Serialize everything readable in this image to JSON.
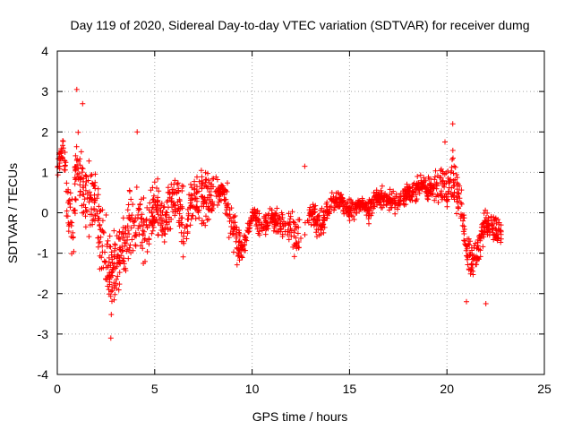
{
  "chart_data": {
    "type": "scatter",
    "title": "Day 119 of 2020, Sidereal Day-to-day VTEC variation (SDTVAR) for receiver dumg",
    "xlabel": "GPS time / hours",
    "ylabel": "SDTVAR / TECUs",
    "xlim": [
      0,
      25
    ],
    "ylim": [
      -4,
      4
    ],
    "xticks": [
      0,
      5,
      10,
      15,
      20,
      25
    ],
    "yticks": [
      -4,
      -3,
      -2,
      -1,
      0,
      1,
      2,
      3,
      4
    ],
    "grid": true,
    "marker": "+",
    "color": "#ff0000",
    "series": [
      {
        "name": "SDTVAR",
        "x_range_hours": [
          0,
          22.8
        ],
        "profile": [
          {
            "x": 0.0,
            "center": 1.1,
            "spread": 0.3
          },
          {
            "x": 0.3,
            "center": 1.6,
            "spread": 0.5
          },
          {
            "x": 0.5,
            "center": 0.4,
            "spread": 1.2
          },
          {
            "x": 0.8,
            "center": -0.8,
            "spread": 1.0
          },
          {
            "x": 1.0,
            "center": 1.5,
            "spread": 1.4
          },
          {
            "x": 1.3,
            "center": 0.5,
            "spread": 1.5
          },
          {
            "x": 1.8,
            "center": 0.4,
            "spread": 1.2
          },
          {
            "x": 2.3,
            "center": -0.6,
            "spread": 1.5
          },
          {
            "x": 2.8,
            "center": -1.6,
            "spread": 1.4
          },
          {
            "x": 3.3,
            "center": -0.9,
            "spread": 1.2
          },
          {
            "x": 4.0,
            "center": 0.0,
            "spread": 1.3
          },
          {
            "x": 4.5,
            "center": -0.5,
            "spread": 1.2
          },
          {
            "x": 5.0,
            "center": 0.3,
            "spread": 0.9
          },
          {
            "x": 5.5,
            "center": -0.2,
            "spread": 1.0
          },
          {
            "x": 6.0,
            "center": 0.5,
            "spread": 0.9
          },
          {
            "x": 6.5,
            "center": -0.3,
            "spread": 1.1
          },
          {
            "x": 7.0,
            "center": 0.4,
            "spread": 0.8
          },
          {
            "x": 7.5,
            "center": 0.3,
            "spread": 1.0
          },
          {
            "x": 8.0,
            "center": 0.4,
            "spread": 0.7
          },
          {
            "x": 8.5,
            "center": 0.6,
            "spread": 0.3
          },
          {
            "x": 9.0,
            "center": -0.4,
            "spread": 1.1
          },
          {
            "x": 9.5,
            "center": -1.0,
            "spread": 0.4
          },
          {
            "x": 10.0,
            "center": 0.0,
            "spread": 0.3
          },
          {
            "x": 10.5,
            "center": -0.4,
            "spread": 0.5
          },
          {
            "x": 11.0,
            "center": -0.1,
            "spread": 0.4
          },
          {
            "x": 11.5,
            "center": -0.3,
            "spread": 0.5
          },
          {
            "x": 12.0,
            "center": -0.4,
            "spread": 0.7
          },
          {
            "x": 12.3,
            "center": -0.8,
            "spread": 0.8
          },
          {
            "x": 13.0,
            "center": 0.0,
            "spread": 0.4
          },
          {
            "x": 13.5,
            "center": -0.3,
            "spread": 0.5
          },
          {
            "x": 14.0,
            "center": 0.2,
            "spread": 0.4
          },
          {
            "x": 14.5,
            "center": 0.3,
            "spread": 0.3
          },
          {
            "x": 15.0,
            "center": 0.1,
            "spread": 0.4
          },
          {
            "x": 15.5,
            "center": 0.2,
            "spread": 0.3
          },
          {
            "x": 16.0,
            "center": 0.1,
            "spread": 0.4
          },
          {
            "x": 16.5,
            "center": 0.4,
            "spread": 0.3
          },
          {
            "x": 17.0,
            "center": 0.3,
            "spread": 0.4
          },
          {
            "x": 17.5,
            "center": 0.2,
            "spread": 0.4
          },
          {
            "x": 18.0,
            "center": 0.5,
            "spread": 0.4
          },
          {
            "x": 18.5,
            "center": 0.6,
            "spread": 0.4
          },
          {
            "x": 19.0,
            "center": 0.6,
            "spread": 0.4
          },
          {
            "x": 19.5,
            "center": 0.7,
            "spread": 0.6
          },
          {
            "x": 20.0,
            "center": 0.6,
            "spread": 0.7
          },
          {
            "x": 20.3,
            "center": 1.0,
            "spread": 0.9
          },
          {
            "x": 20.7,
            "center": 0.2,
            "spread": 0.8
          },
          {
            "x": 21.0,
            "center": -0.8,
            "spread": 0.6
          },
          {
            "x": 21.3,
            "center": -1.3,
            "spread": 0.6
          },
          {
            "x": 21.7,
            "center": -0.8,
            "spread": 0.6
          },
          {
            "x": 22.0,
            "center": -0.2,
            "spread": 0.6
          },
          {
            "x": 22.5,
            "center": -0.4,
            "spread": 0.5
          },
          {
            "x": 22.8,
            "center": -0.5,
            "spread": 0.5
          }
        ],
        "extremes": [
          {
            "x": 1.0,
            "y": 3.05
          },
          {
            "x": 1.3,
            "y": 2.7
          },
          {
            "x": 2.75,
            "y": -3.1
          },
          {
            "x": 4.1,
            "y": 2.0
          },
          {
            "x": 12.7,
            "y": 1.15
          },
          {
            "x": 19.9,
            "y": 1.75
          },
          {
            "x": 20.3,
            "y": 2.2
          },
          {
            "x": 21.0,
            "y": -2.2
          },
          {
            "x": 22.0,
            "y": -2.25
          }
        ]
      }
    ]
  }
}
